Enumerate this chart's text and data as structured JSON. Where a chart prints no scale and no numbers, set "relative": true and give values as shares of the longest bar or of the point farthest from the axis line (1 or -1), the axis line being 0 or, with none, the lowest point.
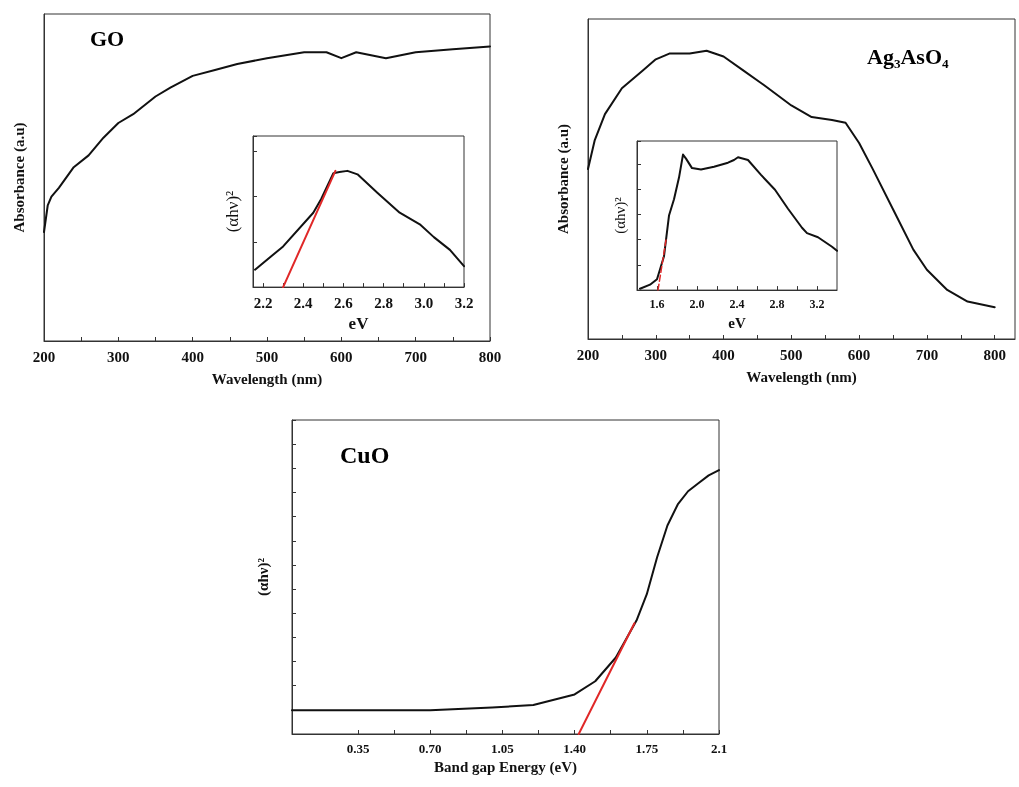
{
  "chart_data": [
    {
      "type": "line",
      "title": "GO",
      "xlabel": "Wavelength (nm)",
      "ylabel": "Absorbance (a.u)",
      "relative": true,
      "xlim": [
        200,
        800
      ],
      "xticks": [
        200,
        300,
        400,
        500,
        600,
        700,
        800
      ],
      "tick_labels": "x",
      "grid": false,
      "marker": "none",
      "line_style": "solid",
      "series": [
        {
          "color": "#111111",
          "x": [
            200,
            205,
            210,
            220,
            240,
            260,
            280,
            300,
            320,
            350,
            370,
            400,
            430,
            460,
            500,
            550,
            580,
            600,
            620,
            640,
            660,
            700,
            750,
            800
          ],
          "values": [
            0.37,
            0.46,
            0.49,
            0.52,
            0.59,
            0.63,
            0.69,
            0.74,
            0.77,
            0.83,
            0.86,
            0.9,
            0.92,
            0.94,
            0.96,
            0.98,
            0.98,
            0.96,
            0.98,
            0.97,
            0.96,
            0.98,
            0.99,
            1.0
          ]
        }
      ]
    },
    {
      "type": "line",
      "xlabel": "eV",
      "ylabel": "(αhν)²",
      "relative": true,
      "xlim": [
        2.15,
        3.2
      ],
      "xticks": [
        2.2,
        2.4,
        2.6,
        2.8,
        {
          "value": 3.0,
          "label": "3.0"
        },
        3.2
      ],
      "tick_labels": "x",
      "grid": false,
      "marker": "none",
      "line_style": "solid",
      "series": [
        {
          "color": "#111111",
          "x": [
            2.16,
            2.3,
            2.45,
            2.49,
            2.55,
            2.58,
            2.62,
            2.67,
            2.77,
            2.88,
            2.98,
            3.05,
            3.13,
            3.16,
            3.2
          ],
          "values": [
            0.15,
            0.35,
            0.64,
            0.76,
            0.98,
            0.99,
            1.0,
            0.97,
            0.81,
            0.64,
            0.54,
            0.43,
            0.32,
            0.26,
            0.18
          ]
        },
        {
          "color": "#e02828",
          "x": [
            2.3,
            2.56
          ],
          "values": [
            0,
            1.0
          ]
        }
      ]
    },
    {
      "type": "line",
      "title": "Ag₃AsO₄",
      "xlabel": "Wavelength (nm)",
      "ylabel": "Absorbance (a.u)",
      "relative": true,
      "xlim": [
        200,
        830
      ],
      "xticks": [
        200,
        300,
        400,
        500,
        600,
        700,
        800
      ],
      "tick_labels": "x",
      "grid": false,
      "marker": "none",
      "line_style": "solid",
      "series": [
        {
          "color": "#111111",
          "x": [
            200,
            210,
            225,
            250,
            280,
            300,
            320,
            350,
            375,
            400,
            430,
            460,
            500,
            530,
            560,
            580,
            600,
            620,
            650,
            680,
            700,
            730,
            760,
            800
          ],
          "values": [
            0.59,
            0.69,
            0.78,
            0.87,
            0.93,
            0.97,
            0.99,
            0.99,
            1.0,
            0.98,
            0.93,
            0.88,
            0.81,
            0.77,
            0.76,
            0.75,
            0.68,
            0.59,
            0.45,
            0.31,
            0.24,
            0.17,
            0.13,
            0.11
          ]
        }
      ]
    },
    {
      "type": "line",
      "xlabel": "eV",
      "ylabel": "(αhν)²",
      "relative": true,
      "xlim": [
        1.4,
        3.4
      ],
      "xticks": [
        1.6,
        {
          "value": 2.0,
          "label": "2.0"
        },
        2.4,
        2.8,
        3.2
      ],
      "tick_labels": "x",
      "grid": false,
      "marker": "none",
      "line_style": "solid",
      "series": [
        {
          "color": "#111111",
          "x": [
            1.43,
            1.53,
            1.6,
            1.67,
            1.72,
            1.77,
            1.82,
            1.86,
            1.89,
            1.95,
            2.04,
            2.17,
            2.31,
            2.37,
            2.41,
            2.51,
            2.64,
            2.78,
            2.91,
            3.05,
            3.1,
            3.21,
            3.35,
            3.4
          ],
          "values": [
            0.01,
            0.04,
            0.08,
            0.25,
            0.55,
            0.67,
            0.83,
            1.0,
            0.97,
            0.9,
            0.89,
            0.91,
            0.94,
            0.96,
            0.98,
            0.96,
            0.85,
            0.74,
            0.6,
            0.46,
            0.42,
            0.39,
            0.32,
            0.29
          ]
        },
        {
          "color": "#e02828",
          "line_style": "dashed",
          "x": [
            1.61,
            1.69
          ],
          "values": [
            0,
            0.37
          ]
        }
      ]
    },
    {
      "type": "line",
      "title": "CuO",
      "xlabel": "Band gap Energy (eV)",
      "ylabel": "(αhν)²",
      "relative": true,
      "xlim": [
        0.03,
        2.1
      ],
      "xticks": [
        0.35,
        {
          "value": 0.7,
          "label": "0.70"
        },
        1.05,
        {
          "value": 1.4,
          "label": "1.40"
        },
        1.75,
        2.1
      ],
      "tick_labels": "x",
      "grid": false,
      "marker": "none",
      "line_style": "solid",
      "series": [
        {
          "color": "#111111",
          "x": [
            0.03,
            0.7,
            1.0,
            1.2,
            1.3,
            1.4,
            1.5,
            1.6,
            1.65,
            1.7,
            1.75,
            1.8,
            1.85,
            1.9,
            1.95,
            2.0,
            2.05,
            2.1
          ],
          "values": [
            0.09,
            0.09,
            0.1,
            0.11,
            0.13,
            0.15,
            0.2,
            0.29,
            0.36,
            0.43,
            0.53,
            0.67,
            0.79,
            0.87,
            0.92,
            0.95,
            0.98,
            1.0
          ]
        },
        {
          "color": "#e02828",
          "x": [
            1.42,
            1.69
          ],
          "values": [
            0,
            0.42
          ]
        }
      ]
    }
  ]
}
